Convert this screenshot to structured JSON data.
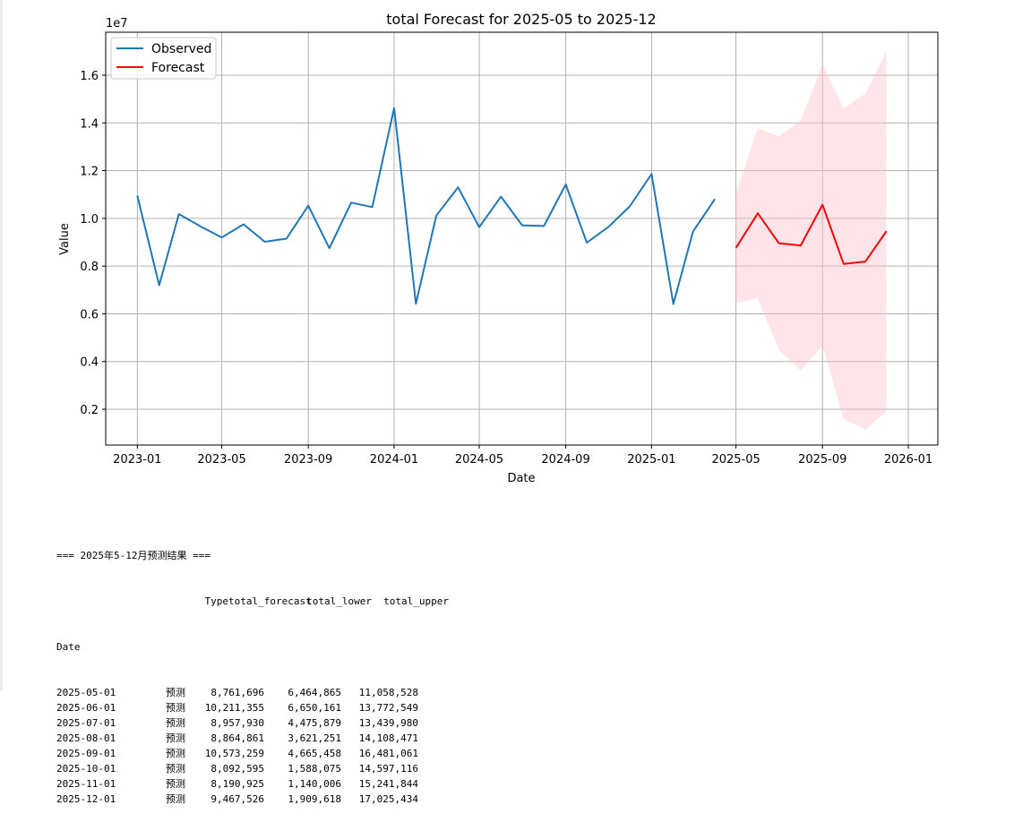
{
  "chart_data": {
    "type": "line",
    "title": "total Forecast for 2025-05 to 2025-12",
    "xlabel": "Date",
    "ylabel": "Value",
    "y_scale_label": "1e7",
    "ylim": [
      0.05,
      1.78
    ],
    "xlim": [
      "2022-11-17",
      "2026-02-12"
    ],
    "grid": true,
    "legend_location": "upper left",
    "x_ticks": [
      {
        "date": "2023-01-01",
        "label": "2023-01"
      },
      {
        "date": "2023-05-01",
        "label": "2023-05"
      },
      {
        "date": "2023-09-01",
        "label": "2023-09"
      },
      {
        "date": "2024-01-01",
        "label": "2024-01"
      },
      {
        "date": "2024-05-01",
        "label": "2024-05"
      },
      {
        "date": "2024-09-01",
        "label": "2024-09"
      },
      {
        "date": "2025-01-01",
        "label": "2025-01"
      },
      {
        "date": "2025-05-01",
        "label": "2025-05"
      },
      {
        "date": "2025-09-01",
        "label": "2025-09"
      },
      {
        "date": "2026-01-01",
        "label": "2026-01"
      }
    ],
    "y_ticks": [
      {
        "value": 0.2,
        "label": "0.2"
      },
      {
        "value": 0.4,
        "label": "0.4"
      },
      {
        "value": 0.6,
        "label": "0.6"
      },
      {
        "value": 0.8,
        "label": "0.8"
      },
      {
        "value": 1.0,
        "label": "1.0"
      },
      {
        "value": 1.2,
        "label": "1.2"
      },
      {
        "value": 1.4,
        "label": "1.4"
      },
      {
        "value": 1.6,
        "label": "1.6"
      }
    ],
    "series": [
      {
        "name": "Observed",
        "color": "#1f77b4",
        "x": [
          "2023-01-01",
          "2023-02-01",
          "2023-03-01",
          "2023-04-01",
          "2023-05-01",
          "2023-06-01",
          "2023-07-01",
          "2023-08-01",
          "2023-09-01",
          "2023-10-01",
          "2023-11-01",
          "2023-12-01",
          "2024-01-01",
          "2024-02-01",
          "2024-03-01",
          "2024-04-01",
          "2024-05-01",
          "2024-06-01",
          "2024-07-01",
          "2024-08-01",
          "2024-09-01",
          "2024-10-01",
          "2024-11-01",
          "2024-12-01",
          "2025-01-01",
          "2025-02-01",
          "2025-03-01",
          "2025-04-01"
        ],
        "values": [
          1.095,
          0.72,
          1.018,
          0.966,
          0.92,
          0.975,
          0.902,
          0.915,
          1.053,
          0.875,
          1.066,
          1.047,
          1.462,
          0.642,
          1.012,
          1.13,
          0.963,
          1.091,
          0.971,
          0.968,
          1.142,
          0.898,
          0.965,
          1.05,
          1.186,
          0.641,
          0.945,
          1.081
        ]
      },
      {
        "name": "Forecast",
        "color": "#ff0000",
        "x": [
          "2025-05-01",
          "2025-06-01",
          "2025-07-01",
          "2025-08-01",
          "2025-09-01",
          "2025-10-01",
          "2025-11-01",
          "2025-12-01"
        ],
        "values": [
          0.8761696,
          1.0211355,
          0.895793,
          0.8864861,
          1.0573259,
          0.8092595,
          0.8190925,
          0.9467526
        ]
      }
    ],
    "confidence_band": {
      "color": "#ffc0cb",
      "lower": [
        0.6464865,
        0.6650161,
        0.4475879,
        0.3621251,
        0.4665458,
        0.1588075,
        0.1140006,
        0.1909618
      ],
      "upper": [
        1.1058528,
        1.3772549,
        1.343998,
        1.4108471,
        1.6481061,
        1.4597116,
        1.5241844,
        1.7025434
      ]
    }
  },
  "output": {
    "heading": "=== 2025年5-12月预测结果 ===",
    "columns": [
      "Type",
      "total_forecast",
      "total_lower",
      "total_upper"
    ],
    "index_name": "Date",
    "rows": [
      [
        "2025-05-01",
        "预测",
        "8,761,696",
        "6,464,865",
        "11,058,528"
      ],
      [
        "2025-06-01",
        "预测",
        "10,211,355",
        "6,650,161",
        "13,772,549"
      ],
      [
        "2025-07-01",
        "预测",
        "8,957,930",
        "4,475,879",
        "13,439,980"
      ],
      [
        "2025-08-01",
        "预测",
        "8,864,861",
        "3,621,251",
        "14,108,471"
      ],
      [
        "2025-09-01",
        "预测",
        "10,573,259",
        "4,665,458",
        "16,481,061"
      ],
      [
        "2025-10-01",
        "预测",
        "8,092,595",
        "1,588,075",
        "14,597,116"
      ],
      [
        "2025-11-01",
        "预测",
        "8,190,925",
        "1,140,006",
        "15,241,844"
      ],
      [
        "2025-12-01",
        "预测",
        "9,467,526",
        "1,909,618",
        "17,025,434"
      ]
    ]
  }
}
